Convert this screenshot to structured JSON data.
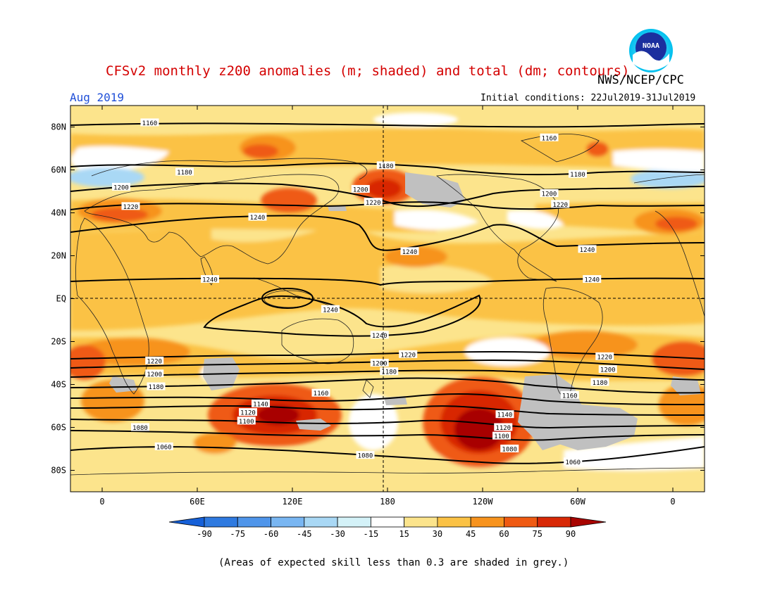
{
  "header": {
    "title": "CFSv2 monthly z200 anomalies (m; shaded) and total (dm; contours)",
    "agency": "NWS/NCEP/CPC",
    "valid_month": "Aug 2019",
    "initial_conditions": "Initial conditions: 22Jul2019-31Jul2019",
    "logo_text": "NOAA"
  },
  "map": {
    "projection": "cylindrical equidistant",
    "lon_range": [
      -20,
      380
    ],
    "lat_range": [
      -90,
      90
    ],
    "lat_ticks": [
      {
        "value": 80,
        "label": "80N"
      },
      {
        "value": 60,
        "label": "60N"
      },
      {
        "value": 40,
        "label": "40N"
      },
      {
        "value": 20,
        "label": "20N"
      },
      {
        "value": 0,
        "label": "EQ"
      },
      {
        "value": -20,
        "label": "20S"
      },
      {
        "value": -40,
        "label": "40S"
      },
      {
        "value": -60,
        "label": "60S"
      },
      {
        "value": -80,
        "label": "80S"
      }
    ],
    "lon_ticks": [
      {
        "value": 0,
        "label": "0"
      },
      {
        "value": 60,
        "label": "60E"
      },
      {
        "value": 120,
        "label": "120E"
      },
      {
        "value": 180,
        "label": "180"
      },
      {
        "value": 240,
        "label": "120W"
      },
      {
        "value": 300,
        "label": "60W"
      },
      {
        "value": 360,
        "label": "0"
      }
    ]
  },
  "colorbar": {
    "labels": [
      "-90",
      "-75",
      "-60",
      "-45",
      "-30",
      "-15",
      "15",
      "30",
      "45",
      "60",
      "75",
      "90"
    ],
    "colors": [
      "#1660d8",
      "#2f7ae0",
      "#4f95ea",
      "#79b6f2",
      "#a9d8f5",
      "#d4f2f8",
      "#ffffff",
      "#fce48c",
      "#fbc245",
      "#f7931e",
      "#ef5a12",
      "#d82806",
      "#a80400"
    ],
    "skill_grey": "#c0c0c0"
  },
  "footer": {
    "note": "(Areas of expected skill less than 0.3 are shaded in grey.)"
  },
  "chart_data": {
    "type": "heatmap",
    "description_units": {
      "shading": "m",
      "contours": "dm"
    },
    "shading_levels": [
      -90,
      -75,
      -60,
      -45,
      -30,
      -15,
      15,
      30,
      45,
      60,
      75,
      90
    ],
    "contour_levels": [
      1060,
      1080,
      1100,
      1120,
      1140,
      1160,
      1180,
      1200,
      1220,
      1240
    ],
    "contour_labels": [
      {
        "value": "1160",
        "lon": 30,
        "lat": 82
      },
      {
        "value": "1160",
        "lon": 282,
        "lat": 75
      },
      {
        "value": "1180",
        "lon": 52,
        "lat": 59
      },
      {
        "value": "1180",
        "lon": 179,
        "lat": 62
      },
      {
        "value": "1180",
        "lon": 300,
        "lat": 58
      },
      {
        "value": "1200",
        "lon": 12,
        "lat": 52
      },
      {
        "value": "1200",
        "lon": 163,
        "lat": 51
      },
      {
        "value": "1200",
        "lon": 282,
        "lat": 49
      },
      {
        "value": "1220",
        "lon": 18,
        "lat": 43
      },
      {
        "value": "1220",
        "lon": 171,
        "lat": 45
      },
      {
        "value": "1220",
        "lon": 289,
        "lat": 44
      },
      {
        "value": "1240",
        "lon": 98,
        "lat": 38
      },
      {
        "value": "1240",
        "lon": 194,
        "lat": 22
      },
      {
        "value": "1240",
        "lon": 306,
        "lat": 23
      },
      {
        "value": "1240",
        "lon": 68,
        "lat": 9
      },
      {
        "value": "1240",
        "lon": 144,
        "lat": -5
      },
      {
        "value": "1240",
        "lon": 309,
        "lat": 9
      },
      {
        "value": "1240",
        "lon": 175,
        "lat": -17
      },
      {
        "value": "1220",
        "lon": 33,
        "lat": -29
      },
      {
        "value": "1220",
        "lon": 193,
        "lat": -26
      },
      {
        "value": "1220",
        "lon": 317,
        "lat": -27
      },
      {
        "value": "1200",
        "lon": 33,
        "lat": -35
      },
      {
        "value": "1200",
        "lon": 175,
        "lat": -30
      },
      {
        "value": "1200",
        "lon": 319,
        "lat": -33
      },
      {
        "value": "1180",
        "lon": 34,
        "lat": -41
      },
      {
        "value": "1180",
        "lon": 181,
        "lat": -34
      },
      {
        "value": "1180",
        "lon": 314,
        "lat": -39
      },
      {
        "value": "1160",
        "lon": 138,
        "lat": -44
      },
      {
        "value": "1160",
        "lon": 295,
        "lat": -45
      },
      {
        "value": "1140",
        "lon": 100,
        "lat": -49
      },
      {
        "value": "1140",
        "lon": 254,
        "lat": -54
      },
      {
        "value": "1120",
        "lon": 92,
        "lat": -53
      },
      {
        "value": "1120",
        "lon": 253,
        "lat": -60
      },
      {
        "value": "1100",
        "lon": 91,
        "lat": -57
      },
      {
        "value": "1100",
        "lon": 252,
        "lat": -64
      },
      {
        "value": "1080",
        "lon": 24,
        "lat": -60
      },
      {
        "value": "1080",
        "lon": 257,
        "lat": -70
      },
      {
        "value": "1080",
        "lon": 166,
        "lat": -73
      },
      {
        "value": "1060",
        "lon": 39,
        "lat": -69
      },
      {
        "value": "1060",
        "lon": 297,
        "lat": -76
      }
    ],
    "anomaly_features": [
      {
        "label": "max near 115E 55S",
        "lon": 115,
        "lat": -55,
        "value_m": 90
      },
      {
        "label": "max near 125W 60S",
        "lon": 235,
        "lat": -60,
        "value_m": 90
      },
      {
        "label": "max near 175W 45N",
        "lon": 185,
        "lat": 45,
        "value_m": 75
      }
    ]
  }
}
